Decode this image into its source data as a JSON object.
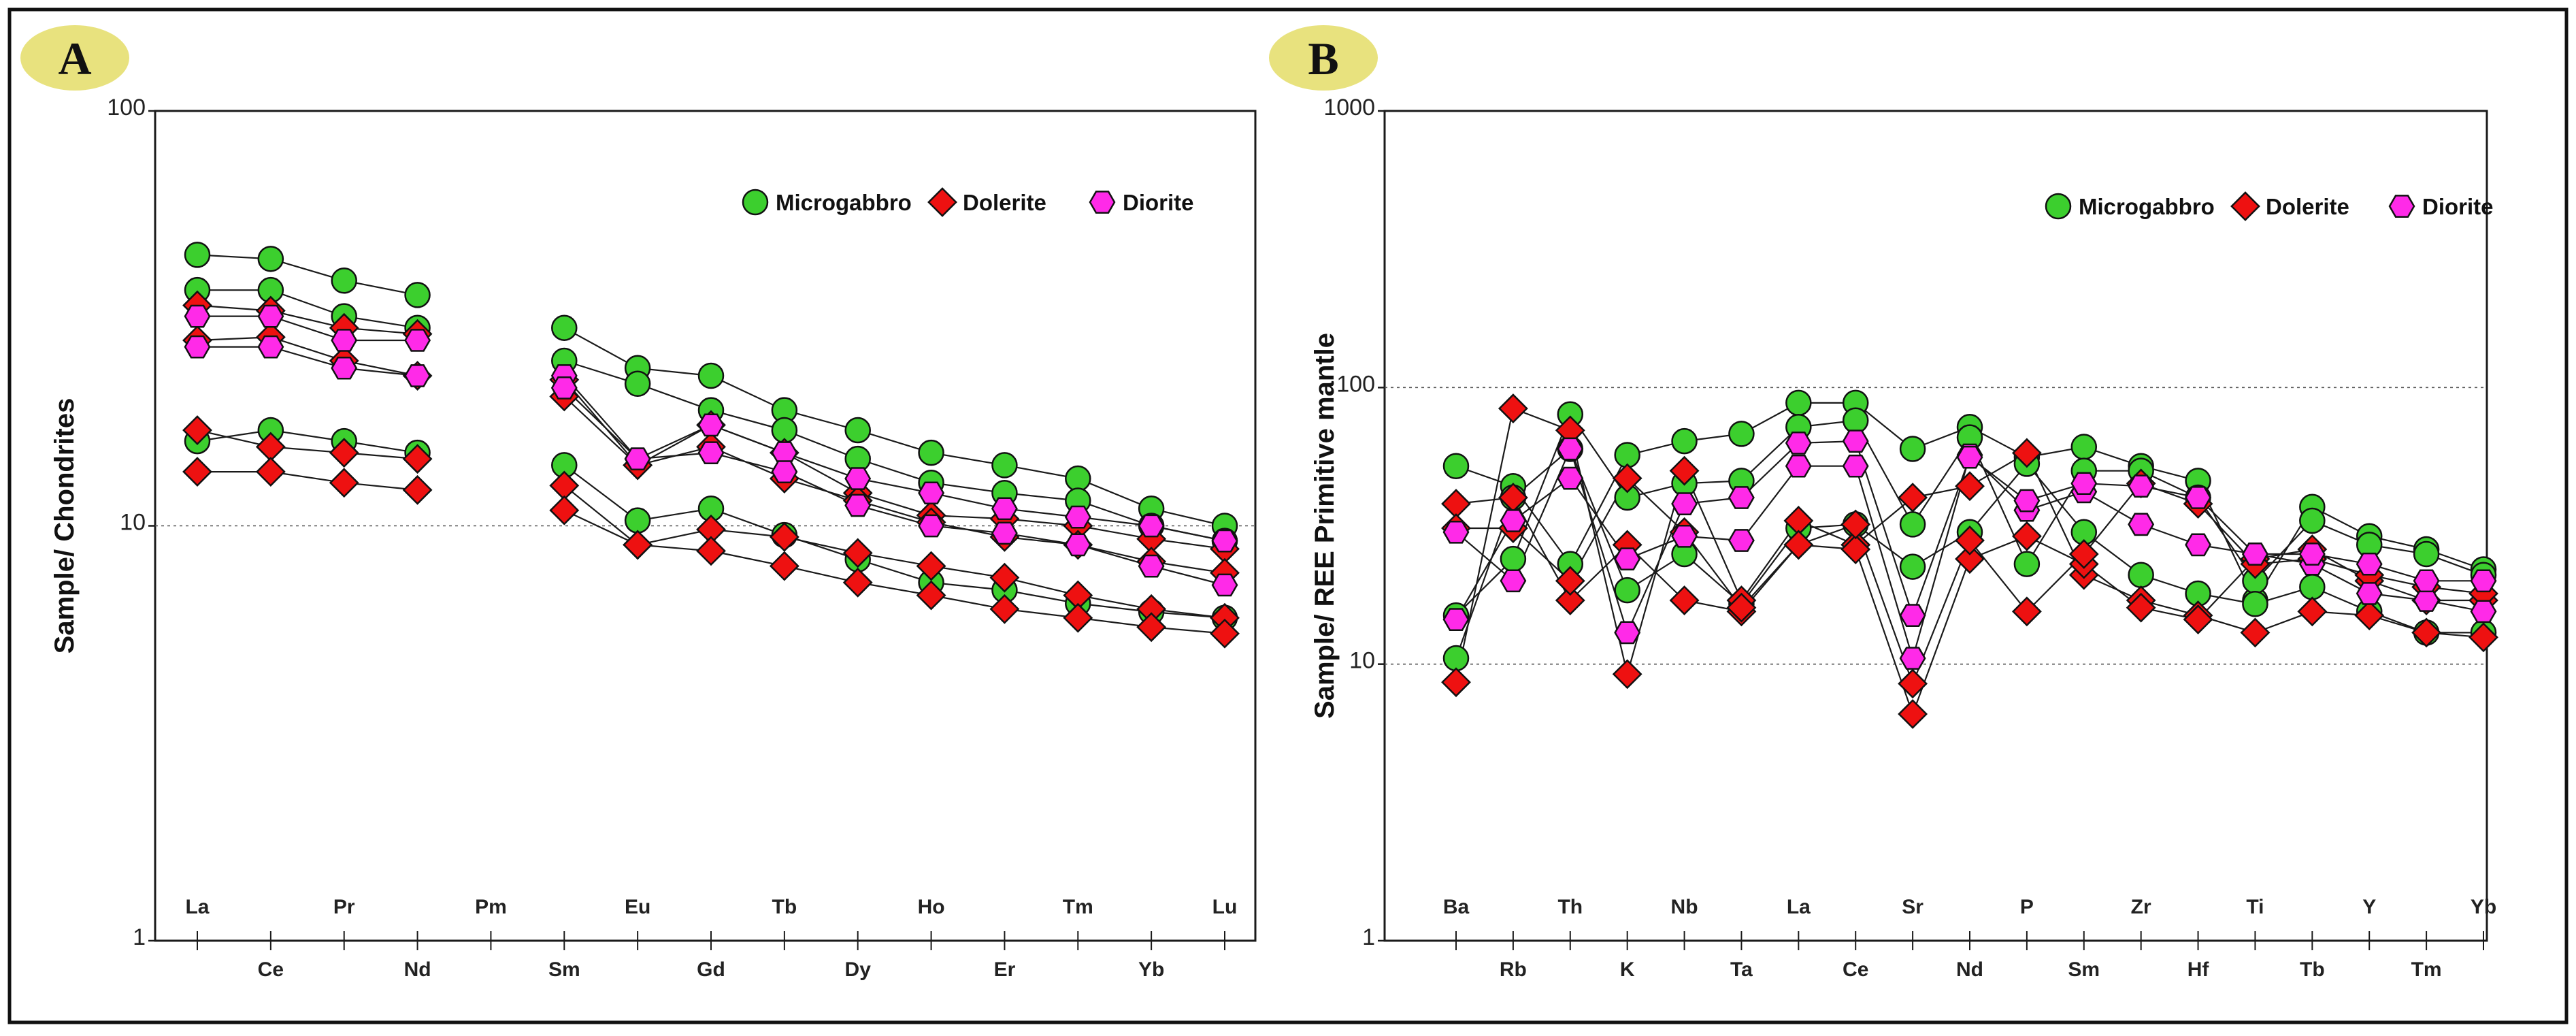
{
  "colors": {
    "microgabbro": "#3ccf2e",
    "dolerite": "#ee1111",
    "diorite": "#ff2ae8",
    "badge": "#e8e27e",
    "line": "#1a1a1a"
  },
  "chart_data": [
    {
      "type": "line",
      "panel_label": "A",
      "ylabel": "Sample/ Chondrites",
      "yscale": "log",
      "ylim": [
        1,
        100
      ],
      "yticks": [
        "1",
        "10",
        "100"
      ],
      "gridlines": [
        10
      ],
      "legend_position": "top-right",
      "legend": [
        "Microgabbro",
        "Dolerite",
        "Diorite"
      ],
      "categories": [
        "La",
        "Ce",
        "Pr",
        "Nd",
        "Pm",
        "Sm",
        "Eu",
        "Gd",
        "Tb",
        "Dy",
        "Ho",
        "Er",
        "Tm",
        "Yb",
        "Lu"
      ],
      "series": [
        {
          "name": "Microgabbro",
          "rock": "microgabbro",
          "values": [
            45,
            44,
            39,
            36,
            null,
            30,
            24,
            23,
            19,
            17,
            15,
            14,
            13,
            11,
            10
          ]
        },
        {
          "name": "Microgabbro",
          "rock": "microgabbro",
          "values": [
            37,
            37,
            32,
            30,
            null,
            25,
            22,
            19,
            17,
            14.5,
            12.7,
            12,
            11.5,
            10,
            9.2
          ]
        },
        {
          "name": "Microgabbro",
          "rock": "microgabbro",
          "values": [
            16,
            17,
            16,
            15,
            null,
            14,
            10.3,
            11,
            9.5,
            8.3,
            7.3,
            7,
            6.5,
            6.2,
            6
          ]
        },
        {
          "name": "Dolerite",
          "rock": "dolerite",
          "values": [
            34,
            33,
            30,
            29,
            null,
            22.5,
            14,
            17.5,
            15,
            12,
            10.6,
            10.4,
            10,
            9.3,
            8.8
          ]
        },
        {
          "name": "Dolerite",
          "rock": "dolerite",
          "values": [
            28,
            28.5,
            25,
            23,
            null,
            20.5,
            14,
            15.5,
            13,
            11.5,
            10.2,
            9.4,
            9,
            8.2,
            7.7
          ]
        },
        {
          "name": "Dolerite",
          "rock": "dolerite",
          "values": [
            17,
            15.5,
            15,
            14.5,
            null,
            12.5,
            9,
            9.8,
            9.4,
            8.6,
            8,
            7.5,
            6.8,
            6.3,
            6
          ]
        },
        {
          "name": "Dolerite",
          "rock": "dolerite",
          "values": [
            13.5,
            13.5,
            12.7,
            12.2,
            null,
            10.9,
            9,
            8.7,
            8,
            7.3,
            6.8,
            6.3,
            6,
            5.7,
            5.5
          ]
        },
        {
          "name": "Diorite",
          "rock": "diorite",
          "values": [
            32,
            32,
            28,
            28,
            null,
            23,
            14.5,
            17.5,
            15,
            13,
            12,
            11,
            10.5,
            10,
            9.2
          ]
        },
        {
          "name": "Diorite",
          "rock": "diorite",
          "values": [
            27,
            27,
            24,
            23,
            null,
            21.5,
            14.5,
            15,
            13.5,
            11.2,
            10,
            9.6,
            9,
            8,
            7.2
          ]
        }
      ]
    },
    {
      "type": "line",
      "panel_label": "B",
      "ylabel": "Sample/ REE Primitive mantle",
      "yscale": "log",
      "ylim": [
        1,
        1000
      ],
      "yticks": [
        "1",
        "10",
        "100",
        "1000"
      ],
      "gridlines": [
        10,
        100
      ],
      "legend_position": "top-right",
      "legend": [
        "Microgabbro",
        "Dolerite",
        "Diorite"
      ],
      "categories": [
        "Ba",
        "Rb",
        "Th",
        "K",
        "Nb",
        "Ta",
        "La",
        "Ce",
        "Sr",
        "Nd",
        "P",
        "Sm",
        "Zr",
        "Hf",
        "Ti",
        "Tb",
        "Y",
        "Tm",
        "Yb"
      ],
      "series": [
        {
          "name": "Microgabbro",
          "rock": "microgabbro",
          "values": [
            52,
            44,
            23,
            57,
            64,
            68,
            88,
            88,
            60,
            72,
            56,
            61,
            52,
            46,
            17,
            37,
            29,
            26,
            22
          ]
        },
        {
          "name": "Microgabbro",
          "rock": "microgabbro",
          "values": [
            15,
            24,
            80,
            40,
            45,
            46,
            72,
            76,
            32,
            66,
            23,
            50,
            50,
            40,
            20,
            33,
            27,
            25,
            21
          ]
        },
        {
          "name": "Microgabbro",
          "rock": "microgabbro",
          "values": [
            10.5,
            40,
            60,
            18.5,
            25,
            16.5,
            31,
            32,
            22.5,
            30,
            53,
            30,
            21,
            18,
            16.5,
            19,
            15.5,
            13,
            13
          ]
        },
        {
          "name": "Dolerite",
          "rock": "dolerite",
          "values": [
            8.6,
            84,
            70,
            9.2,
            50,
            17,
            33,
            27,
            40,
            44,
            58,
            21,
            17,
            15,
            13,
            15.5,
            15,
            13,
            12.5
          ]
        },
        {
          "name": "Dolerite",
          "rock": "dolerite",
          "values": [
            38,
            40,
            17,
            27,
            17,
            15.5,
            27,
            26,
            6.6,
            24,
            29,
            23,
            16,
            14.5,
            24,
            26,
            20,
            17,
            17
          ]
        },
        {
          "name": "Dolerite",
          "rock": "dolerite",
          "values": [
            31,
            31,
            20,
            47,
            30,
            16,
            27,
            32,
            8.5,
            28,
            15.5,
            25,
            45,
            38,
            23,
            24,
            21,
            19,
            18
          ]
        },
        {
          "name": "Diorite",
          "rock": "diorite",
          "values": [
            14.5,
            33,
            47,
            24,
            29,
            28,
            52,
            52,
            10.5,
            57,
            36,
            42,
            32,
            27,
            25,
            23,
            18,
            17,
            15.5
          ]
        },
        {
          "name": "Diorite",
          "rock": "diorite",
          "values": [
            30,
            20,
            60,
            13,
            38,
            40,
            63,
            64,
            15,
            56,
            39,
            45,
            44,
            40,
            25,
            25,
            23,
            20,
            20
          ]
        }
      ]
    }
  ]
}
